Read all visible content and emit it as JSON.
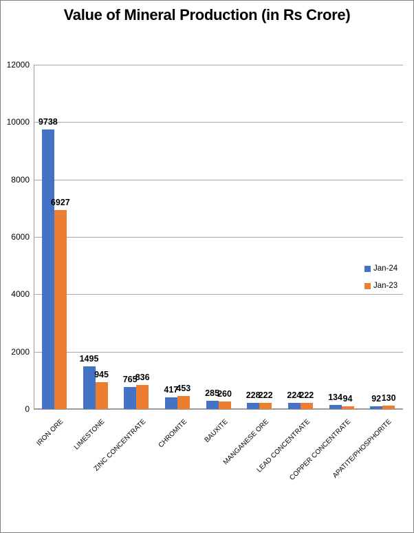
{
  "chart_data": {
    "type": "bar",
    "title": "Value of Mineral Production (in Rs Crore)",
    "categories": [
      "IRON ORE",
      "LIMESTONE",
      "ZINC CONCENTRATE",
      "CHROMITE",
      "BAUXITE",
      "MANGANESE ORE",
      "LEAD CONCENTRATE",
      "COPPER CONCENTRATE",
      "APATITE/PHOSPHORITE"
    ],
    "series": [
      {
        "name": "Jan-24",
        "color": "#4472C4",
        "values": [
          9738,
          1495,
          765,
          417,
          285,
          228,
          224,
          134,
          92
        ]
      },
      {
        "name": "Jan-23",
        "color": "#ED7D31",
        "values": [
          6927,
          945,
          836,
          453,
          260,
          222,
          222,
          94,
          130
        ]
      }
    ],
    "xlabel": "",
    "ylabel": "",
    "ylim": [
      0,
      12000
    ],
    "yticks": [
      0,
      2000,
      4000,
      6000,
      8000,
      10000,
      12000
    ],
    "grid": true,
    "data_labels": true,
    "legend_position": "middle-right"
  },
  "colors": {
    "series_1": "#4472C4",
    "series_2": "#ED7D31",
    "gridline": "#A6A6A6",
    "axis_line": "#9B9B9B",
    "frame_border": "#7F7F7F",
    "text": "#000000",
    "background": "#FFFFFF"
  }
}
